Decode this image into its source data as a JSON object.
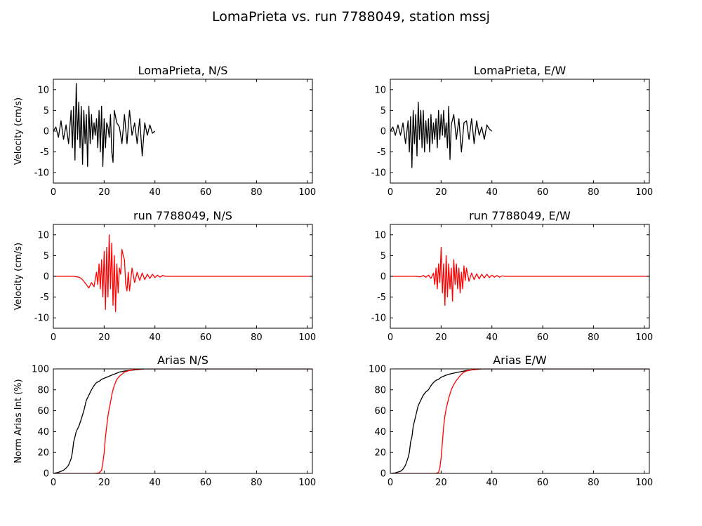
{
  "figure": {
    "suptitle": "LomaPrieta vs. run 7788049, station mssj"
  },
  "colors": {
    "recorded": "#000000",
    "simulated": "#ff0000"
  },
  "chart_data": [
    {
      "id": "vel_rec_ns",
      "type": "line",
      "title": "LomaPrieta, N/S",
      "ylabel": "Velocity (cm/s)",
      "xlim": [
        0,
        102
      ],
      "ylim": [
        -12.5,
        12.5
      ],
      "xticks": [
        "0",
        "20",
        "40",
        "60",
        "80",
        "100"
      ],
      "yticks": [
        "10",
        "5",
        "0",
        "-5",
        "-10"
      ],
      "series": [
        {
          "color": "#000000",
          "x": [
            0,
            1,
            2,
            3,
            4,
            5,
            6,
            7,
            7.5,
            8,
            8.5,
            9,
            9.5,
            10,
            10.5,
            11,
            11.5,
            12,
            12.5,
            13,
            13.5,
            14,
            14.5,
            15,
            15.5,
            16,
            16.5,
            17,
            17.5,
            18,
            18.5,
            19,
            19.5,
            20,
            20.5,
            21,
            21.5,
            22,
            22.5,
            23,
            23.5,
            24,
            25,
            26,
            27,
            28,
            29,
            30,
            31,
            32,
            33,
            34,
            35,
            36,
            37,
            38,
            39,
            40
          ],
          "y": [
            0,
            1,
            -1.5,
            2.5,
            -2,
            1.5,
            -3,
            5,
            -4,
            6,
            -7,
            11.5,
            -2,
            7,
            -4,
            6,
            -8,
            5,
            -3,
            4,
            -8.5,
            6,
            -3,
            4,
            -2,
            2,
            -1,
            3,
            -4,
            5,
            -5,
            6,
            -8.5,
            3,
            -4,
            2,
            1,
            -1.5,
            4,
            -5,
            -7.5,
            5,
            2,
            1,
            -3,
            4,
            -3,
            5,
            -1,
            2,
            -3,
            3,
            -6,
            2,
            -1,
            1.5,
            -0.5,
            0
          ]
        }
      ]
    },
    {
      "id": "vel_rec_ew",
      "type": "line",
      "title": "LomaPrieta, E/W",
      "ylabel": "",
      "xlim": [
        0,
        102
      ],
      "ylim": [
        -12.5,
        12.5
      ],
      "xticks": [
        "0",
        "20",
        "40",
        "60",
        "80",
        "100"
      ],
      "yticks": [
        "10",
        "5",
        "0",
        "-5",
        "-10"
      ],
      "series": [
        {
          "color": "#000000",
          "x": [
            0,
            1,
            2,
            3,
            4,
            5,
            6,
            7,
            7.5,
            8,
            8.5,
            9,
            9.5,
            10,
            10.5,
            11,
            11.5,
            12,
            12.5,
            13,
            13.5,
            14,
            14.5,
            15,
            15.5,
            16,
            16.5,
            17,
            17.5,
            18,
            18.5,
            19,
            19.5,
            20,
            20.5,
            21,
            21.5,
            22,
            22.5,
            23,
            23.5,
            24,
            25,
            26,
            27,
            28,
            29,
            30,
            31,
            32,
            33,
            34,
            35,
            36,
            37,
            38,
            39,
            40
          ],
          "y": [
            0,
            1,
            -1,
            1.5,
            -1,
            2,
            -3,
            2.5,
            -5,
            3.5,
            -8.8,
            5,
            -3,
            4,
            -6,
            7,
            -2,
            5,
            -4,
            5,
            -5,
            2.5,
            -3,
            3,
            -5,
            4,
            -3,
            2,
            -2,
            3,
            -4,
            5,
            -2,
            4,
            -1,
            5,
            -1.5,
            2,
            -4,
            6,
            -6.8,
            1.5,
            4,
            -2,
            3,
            -5,
            2,
            2.5,
            -2,
            3,
            -3,
            2.5,
            -1,
            1,
            -2,
            1.5,
            0.5,
            0
          ]
        }
      ]
    },
    {
      "id": "vel_sim_ns",
      "type": "line",
      "title": "run 7788049, N/S",
      "ylabel": "Velocity (cm/s)",
      "xlim": [
        0,
        102
      ],
      "ylim": [
        -12.5,
        12.5
      ],
      "xticks": [
        "0",
        "20",
        "40",
        "60",
        "80",
        "100"
      ],
      "yticks": [
        "10",
        "5",
        "0",
        "-5",
        "-10"
      ],
      "series": [
        {
          "color": "#ff0000",
          "x": [
            0,
            8,
            10,
            11,
            12,
            13,
            14,
            15,
            16,
            17,
            17.5,
            18,
            18.5,
            19,
            19.5,
            20,
            20.5,
            21,
            21.5,
            22,
            22.5,
            23,
            23.5,
            24,
            24.5,
            25,
            25.5,
            26,
            26.5,
            27,
            27.5,
            28,
            28.5,
            29,
            29.5,
            30,
            31,
            32,
            33,
            34,
            35,
            36,
            37,
            38,
            39,
            40,
            41,
            42,
            43,
            44,
            45,
            50,
            102
          ],
          "y": [
            0,
            0,
            -0.2,
            -0.5,
            -1.2,
            -2,
            -2.8,
            -1.5,
            -2.5,
            1,
            -2,
            3,
            -3,
            4,
            -5,
            6,
            -8,
            7,
            -5,
            10,
            -3,
            8,
            -7,
            5,
            -8.5,
            3,
            -4,
            2,
            0.5,
            6.5,
            5,
            4,
            -2,
            -3.5,
            1,
            -3.5,
            2,
            -1.5,
            1,
            -1,
            0.8,
            -0.8,
            0.5,
            -0.5,
            0.5,
            -0.3,
            0.3,
            -0.2,
            0.2,
            0,
            0,
            0,
            0
          ]
        }
      ]
    },
    {
      "id": "vel_sim_ew",
      "type": "line",
      "title": "run 7788049, E/W",
      "ylabel": "",
      "xlim": [
        0,
        102
      ],
      "ylim": [
        -12.5,
        12.5
      ],
      "xticks": [
        "0",
        "20",
        "40",
        "60",
        "80",
        "100"
      ],
      "yticks": [
        "10",
        "5",
        "0",
        "-5",
        "-10"
      ],
      "series": [
        {
          "color": "#ff0000",
          "x": [
            0,
            10,
            12,
            13,
            14,
            15,
            16,
            17,
            17.5,
            18,
            18.5,
            19,
            19.5,
            20,
            20.5,
            21,
            21.5,
            22,
            22.5,
            23,
            23.5,
            24,
            24.5,
            25,
            25.5,
            26,
            26.5,
            27,
            27.5,
            28,
            28.5,
            29,
            29.5,
            30,
            31,
            32,
            33,
            34,
            35,
            36,
            37,
            38,
            39,
            40,
            41,
            42,
            43,
            44,
            45,
            46,
            50,
            102
          ],
          "y": [
            0,
            0,
            -0.1,
            0.2,
            -0.2,
            0.3,
            -0.5,
            0.8,
            -2,
            2,
            -3,
            3,
            -1.5,
            7,
            -4,
            3,
            -7,
            5,
            -5,
            3,
            -3,
            2,
            -6,
            4,
            -2,
            3,
            -3,
            2,
            -4,
            1,
            -3,
            2.5,
            -1,
            2,
            -1.2,
            0.8,
            -0.8,
            0.6,
            -0.6,
            0.5,
            -0.4,
            0.5,
            -0.3,
            0.3,
            -0.2,
            0.2,
            -0.2,
            0.1,
            0,
            0,
            0,
            0
          ]
        }
      ]
    },
    {
      "id": "arias_ns",
      "type": "line",
      "title": "Arias N/S",
      "ylabel": "Norm Arias Int (%)",
      "xlim": [
        0,
        102
      ],
      "ylim": [
        0,
        100
      ],
      "xticks": [
        "0",
        "20",
        "40",
        "60",
        "80",
        "100"
      ],
      "yticks": [
        "100",
        "80",
        "60",
        "40",
        "20",
        "0"
      ],
      "series": [
        {
          "color": "#000000",
          "x": [
            0,
            2,
            4,
            5,
            6,
            7,
            7.5,
            8,
            8.5,
            9,
            10,
            11,
            12,
            13,
            14,
            15,
            16,
            17,
            18,
            19,
            20,
            21,
            22,
            23,
            24,
            25,
            26,
            28,
            30,
            32,
            34,
            36,
            38,
            102
          ],
          "y": [
            0,
            1,
            3,
            5,
            8,
            14,
            20,
            30,
            35,
            40,
            45,
            52,
            60,
            70,
            75,
            80,
            84,
            87,
            88,
            90,
            91,
            92,
            93,
            94,
            95,
            96,
            97,
            98,
            98.5,
            99,
            99.5,
            100,
            100,
            100
          ]
        },
        {
          "color": "#ff0000",
          "x": [
            0,
            16,
            18,
            19,
            19.5,
            20,
            20.5,
            21,
            21.5,
            22,
            22.5,
            23,
            23.5,
            24,
            24.5,
            25,
            26,
            27,
            28,
            30,
            32,
            34,
            36,
            102
          ],
          "y": [
            0,
            0,
            0.5,
            3,
            10,
            20,
            35,
            45,
            55,
            62,
            68,
            75,
            80,
            84,
            87,
            90,
            93,
            95,
            97,
            98.5,
            99.3,
            99.7,
            100,
            100
          ]
        }
      ]
    },
    {
      "id": "arias_ew",
      "type": "line",
      "title": "Arias E/W",
      "ylabel": "",
      "xlim": [
        0,
        102
      ],
      "ylim": [
        0,
        100
      ],
      "xticks": [
        "0",
        "20",
        "40",
        "60",
        "80",
        "100"
      ],
      "yticks": [
        "100",
        "80",
        "60",
        "40",
        "20",
        "0"
      ],
      "series": [
        {
          "color": "#000000",
          "x": [
            0,
            2,
            4,
            5,
            6,
            7,
            7.5,
            8,
            8.5,
            9,
            10,
            11,
            12,
            13,
            14,
            15,
            16,
            17,
            18,
            19,
            20,
            22,
            24,
            26,
            28,
            30,
            32,
            34,
            36,
            38,
            102
          ],
          "y": [
            0,
            0.5,
            2,
            4,
            8,
            15,
            20,
            30,
            35,
            45,
            55,
            65,
            70,
            75,
            78,
            80,
            84,
            87,
            89,
            90,
            92,
            94,
            95.5,
            96.5,
            97.5,
            98.5,
            99,
            99.5,
            100,
            100,
            100
          ]
        },
        {
          "color": "#ff0000",
          "x": [
            0,
            18,
            19,
            19.5,
            20,
            20.5,
            21,
            21.5,
            22,
            23,
            24,
            25,
            26,
            27,
            28,
            29,
            30,
            32,
            34,
            36,
            102
          ],
          "y": [
            0,
            0,
            1,
            5,
            15,
            30,
            45,
            55,
            62,
            72,
            80,
            85,
            89,
            92,
            95,
            97,
            98,
            99,
            99.5,
            100,
            100
          ]
        }
      ]
    }
  ]
}
